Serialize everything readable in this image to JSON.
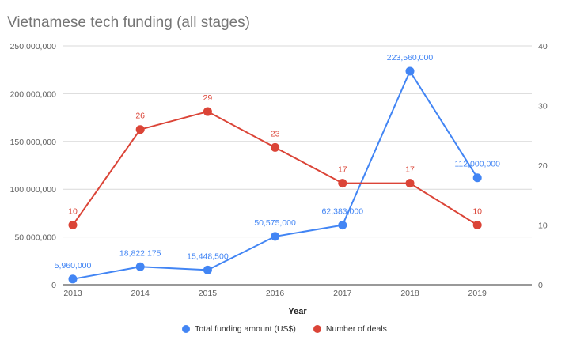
{
  "chart_data": {
    "type": "line",
    "title": "Vietnamese tech funding (all stages)",
    "xlabel": "Year",
    "ylabel": "",
    "categories": [
      "2013",
      "2014",
      "2015",
      "2016",
      "2017",
      "2018",
      "2019"
    ],
    "left_axis": {
      "ylim": [
        0,
        250000000
      ],
      "ticks": [
        "0",
        "50,000,000",
        "100,000,000",
        "150,000,000",
        "200,000,000",
        "250,000,000"
      ],
      "tick_values": [
        0,
        50000000,
        100000000,
        150000000,
        200000000,
        250000000
      ]
    },
    "right_axis": {
      "ylim": [
        0,
        40
      ],
      "ticks": [
        "0",
        "10",
        "20",
        "30",
        "40"
      ],
      "tick_values": [
        0,
        10,
        20,
        30,
        40
      ]
    },
    "grid": true,
    "legend_position": "bottom",
    "series": [
      {
        "name": "Total funding amount (US$)",
        "axis": "left",
        "color": "#4285f4",
        "values": [
          5960000,
          18822175,
          15448500,
          50575000,
          62383000,
          223560000,
          112000000
        ],
        "labels": [
          "5,960,000",
          "18,822,175",
          "15,448,500",
          "50,575,000",
          "62,383,000",
          "223,560,000",
          "112,000,000"
        ]
      },
      {
        "name": "Number of deals",
        "axis": "right",
        "color": "#db4437",
        "values": [
          10,
          26,
          29,
          23,
          17,
          17,
          10
        ],
        "labels": [
          "10",
          "26",
          "29",
          "23",
          "17",
          "17",
          "10"
        ]
      }
    ]
  }
}
